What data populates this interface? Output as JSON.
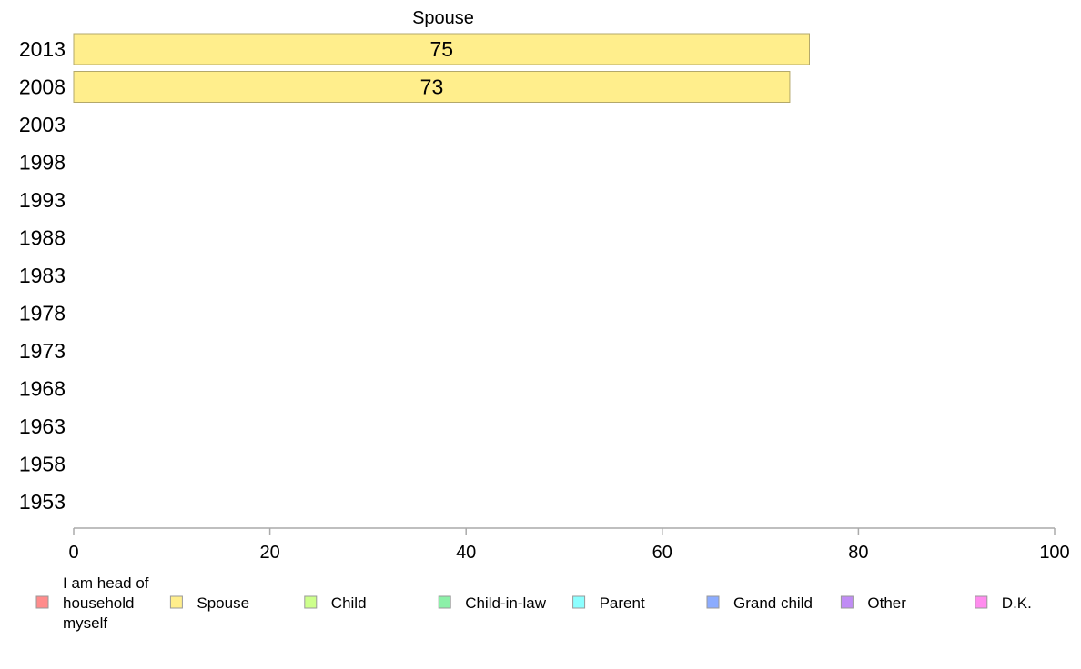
{
  "chart_data": {
    "type": "bar",
    "orientation": "horizontal",
    "title": "Spouse",
    "categories": [
      "2013",
      "2008",
      "2003",
      "1998",
      "1993",
      "1988",
      "1983",
      "1978",
      "1973",
      "1968",
      "1963",
      "1958",
      "1953"
    ],
    "series": [
      {
        "name": "Spouse",
        "values": [
          75,
          73,
          null,
          null,
          null,
          null,
          null,
          null,
          null,
          null,
          null,
          null,
          null
        ],
        "color": "#ffee8c"
      }
    ],
    "data_labels": [
      "75",
      "73"
    ],
    "xlim": [
      0,
      100
    ],
    "xticks": [
      0,
      20,
      40,
      60,
      80,
      100
    ],
    "xtick_labels": [
      "0",
      "20",
      "40",
      "60",
      "80",
      "100"
    ],
    "grid": false,
    "legend": {
      "placement": "bottom",
      "entries": [
        {
          "lines": [
            "I am head of",
            "household",
            "myself"
          ],
          "color": "#ff8c8c"
        },
        {
          "lines": [
            "Spouse"
          ],
          "color": "#ffee8c"
        },
        {
          "lines": [
            "Child"
          ],
          "color": "#cdff8c"
        },
        {
          "lines": [
            "Child-in-law"
          ],
          "color": "#8cf0a8"
        },
        {
          "lines": [
            "Parent"
          ],
          "color": "#8cffff"
        },
        {
          "lines": [
            "Grand child"
          ],
          "color": "#8cacff"
        },
        {
          "lines": [
            "Other"
          ],
          "color": "#c08cf5"
        },
        {
          "lines": [
            "D.K."
          ],
          "color": "#ff8cee"
        }
      ]
    }
  }
}
